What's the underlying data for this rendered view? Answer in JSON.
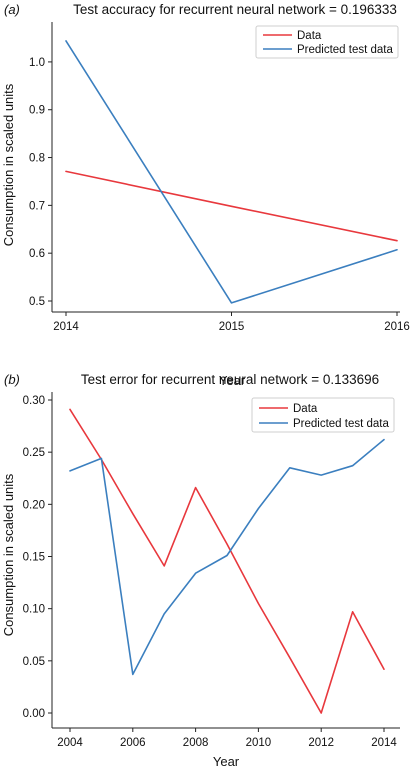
{
  "chart_data": [
    {
      "type": "line",
      "panel": "(a)",
      "title": "Test accuracy for recurrent neural network = 0.196333",
      "xlabel": "Year",
      "ylabel": "Consumption in scaled units",
      "x": [
        2014,
        2015,
        2016
      ],
      "xlim": [
        2014,
        2016
      ],
      "ylim": [
        0.5,
        1.05
      ],
      "xticks": [
        "2014",
        "2015",
        "2016"
      ],
      "yticks": [
        "0.5",
        "0.6",
        "0.7",
        "0.8",
        "0.9",
        "1.0"
      ],
      "legend_position": "top-right",
      "grid": false,
      "series": [
        {
          "name": "Data",
          "color": "#e8383d",
          "values": [
            0.771,
            0.698,
            0.626
          ]
        },
        {
          "name": "Predicted test data",
          "color": "#3b7fbf",
          "values": [
            1.044,
            0.496,
            0.607
          ]
        }
      ]
    },
    {
      "type": "line",
      "panel": "(b)",
      "title": "Test error for recurrent neural network = 0.133696",
      "xlabel": "Year",
      "ylabel": "Consumption in scaled units",
      "x": [
        2004,
        2005,
        2006,
        2007,
        2008,
        2009,
        2010,
        2011,
        2012,
        2013,
        2014
      ],
      "xlim": [
        2004,
        2014
      ],
      "ylim": [
        0,
        0.3
      ],
      "xticks": [
        "2004",
        "2006",
        "2008",
        "2010",
        "2012",
        "2014"
      ],
      "yticks": [
        "0.00",
        "0.05",
        "0.10",
        "0.15",
        "0.20",
        "0.25",
        "0.30"
      ],
      "legend_position": "top-right",
      "grid": false,
      "series": [
        {
          "name": "Data",
          "color": "#e8383d",
          "values": [
            0.291,
            0.243,
            0.191,
            0.141,
            0.216,
            0.162,
            0.105,
            0.053,
            0.0,
            0.097,
            0.042
          ]
        },
        {
          "name": "Predicted test data",
          "color": "#3b7fbf",
          "values": [
            0.232,
            0.244,
            0.037,
            0.095,
            0.134,
            0.151,
            0.196,
            0.235,
            0.228,
            0.237,
            0.262
          ]
        }
      ]
    }
  ]
}
